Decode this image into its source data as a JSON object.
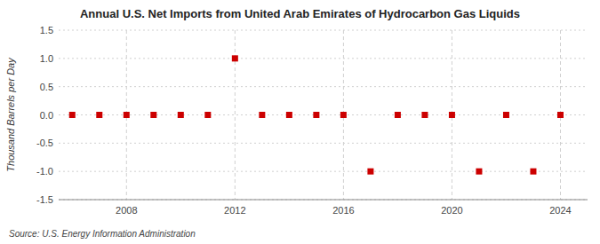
{
  "chart_data": {
    "type": "scatter",
    "title": "Annual U.S. Net Imports from United Arab Emirates of Hydrocarbon Gas Liquids",
    "y_label": "Thousand Barrels per Day",
    "source": "Source: U.S. Energy Information Administration",
    "x": [
      2006,
      2007,
      2008,
      2009,
      2010,
      2011,
      2012,
      2013,
      2014,
      2015,
      2016,
      2017,
      2018,
      2019,
      2020,
      2021,
      2022,
      2023,
      2024
    ],
    "values": [
      0,
      0,
      0,
      0,
      0,
      0,
      1,
      0,
      0,
      0,
      0,
      -1,
      0,
      0,
      0,
      -1,
      0,
      -1,
      0
    ],
    "color": "#cc0000",
    "marker": "square",
    "xlim": [
      2005.5,
      2025.0
    ],
    "xticks": [
      2008,
      2012,
      2016,
      2020,
      2024
    ],
    "ylim": [
      -1.5,
      1.5
    ],
    "yticks": [
      -1.5,
      {
        "value": -1.0,
        "label": "-1.0"
      },
      -0.5,
      {
        "value": 0.0,
        "label": "0.0"
      },
      0.5,
      {
        "value": 1.0,
        "label": "1.0"
      },
      1.5
    ],
    "grid": true
  }
}
